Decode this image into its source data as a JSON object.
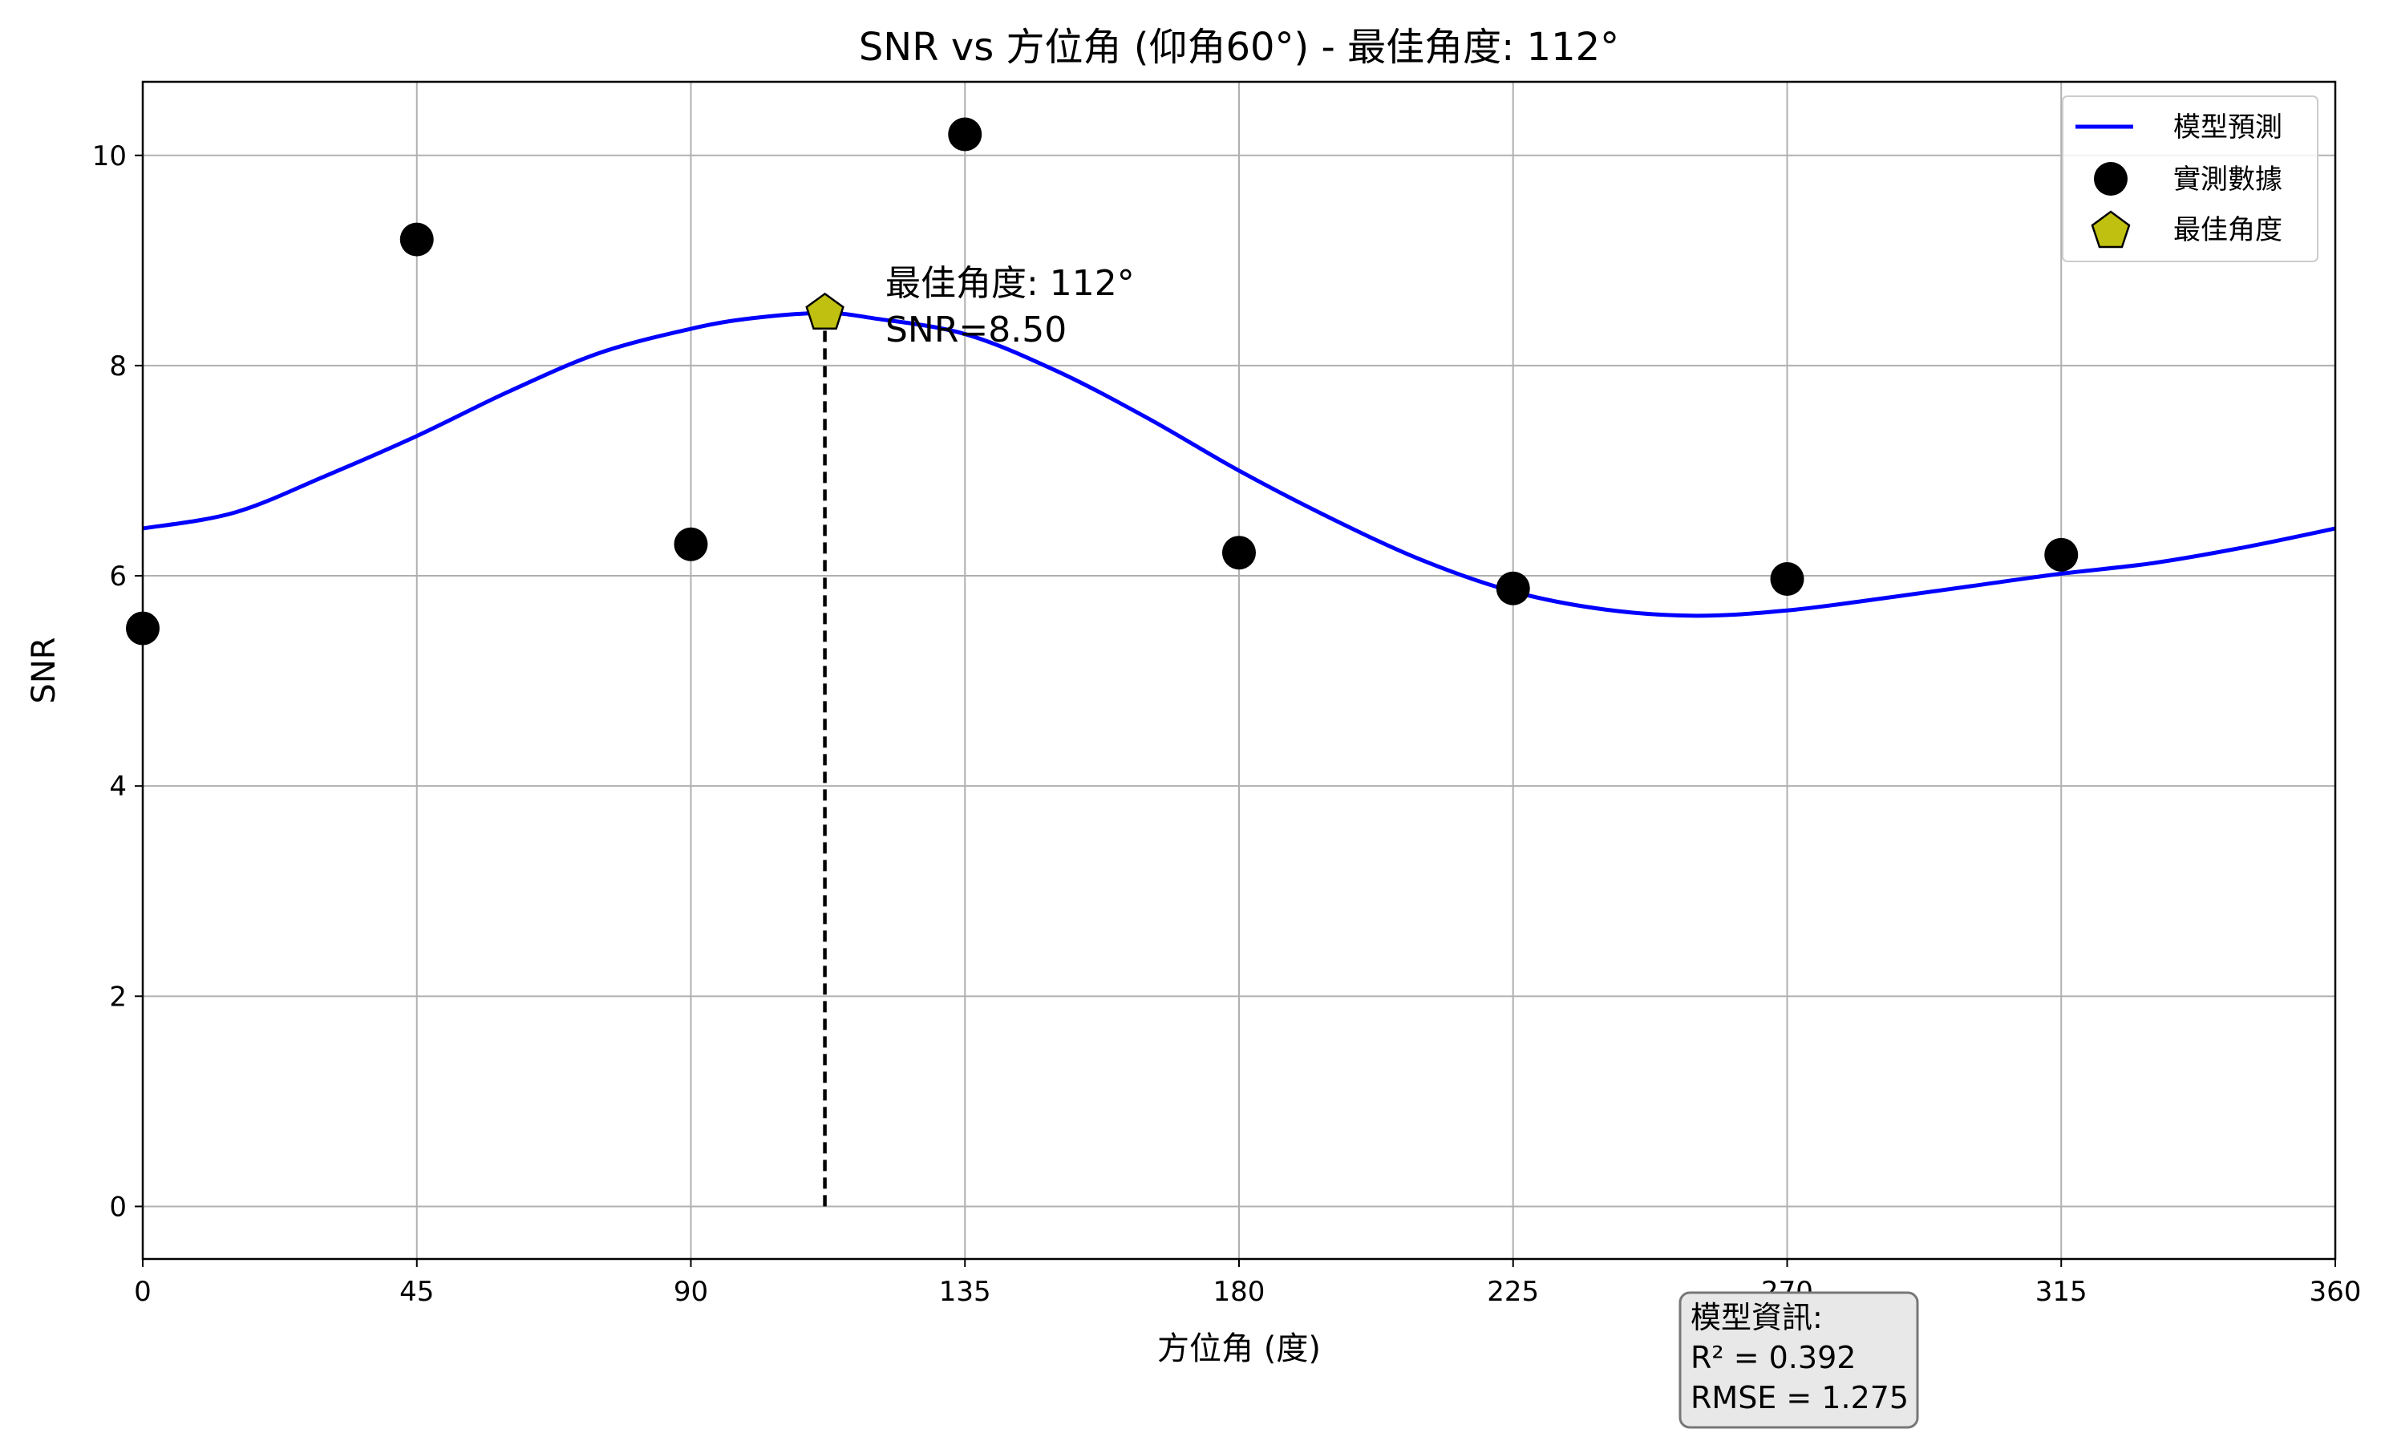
{
  "chart_data": {
    "type": "scatter",
    "title": "SNR vs 方位角 (仰角60°) - 最佳角度: 112°",
    "xlabel": "方位角 (度)",
    "ylabel": "SNR",
    "xlim": [
      0,
      360
    ],
    "ylim": [
      -0.5,
      10.7
    ],
    "xticks": [
      0,
      45,
      90,
      135,
      180,
      225,
      270,
      315,
      360
    ],
    "yticks": [
      0,
      2,
      4,
      6,
      8,
      10
    ],
    "grid": true,
    "legend_position": "top-right",
    "series": [
      {
        "name": "模型預測",
        "kind": "line",
        "color": "#0000ff",
        "x": [
          0,
          15,
          30,
          45,
          60,
          75,
          90,
          100,
          112,
          120,
          135,
          150,
          165,
          180,
          195,
          210,
          225,
          240,
          255,
          270,
          285,
          300,
          315,
          330,
          345,
          360
        ],
        "y": [
          6.45,
          6.6,
          6.95,
          7.33,
          7.75,
          8.12,
          8.35,
          8.45,
          8.5,
          8.45,
          8.3,
          7.95,
          7.5,
          7.0,
          6.55,
          6.15,
          5.85,
          5.68,
          5.62,
          5.67,
          5.78,
          5.9,
          6.02,
          6.12,
          6.27,
          6.45
        ]
      },
      {
        "name": "實測數據",
        "kind": "scatter",
        "color": "#000000",
        "x": [
          0,
          45,
          90,
          135,
          180,
          225,
          270,
          315
        ],
        "y": [
          5.5,
          9.2,
          6.3,
          10.2,
          6.22,
          5.88,
          5.97,
          6.2
        ]
      },
      {
        "name": "最佳角度",
        "kind": "marker",
        "color": "#c0c010",
        "x": [
          112
        ],
        "y": [
          8.5
        ]
      }
    ],
    "annotation": {
      "line1": "最佳角度: 112°",
      "line2": "SNR=8.50",
      "x": 112,
      "y": 8.5
    },
    "info_box": {
      "line1": "模型資訊:",
      "line2": "R² = 0.392",
      "line3": "RMSE = 1.275"
    }
  }
}
